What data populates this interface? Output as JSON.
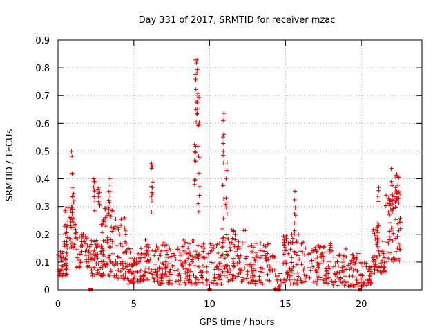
{
  "chart_data": {
    "type": "scatter",
    "title": "Day 331 of 2017, SRMTID for receiver mzac",
    "xlabel": "GPS time / hours",
    "ylabel": "SRMTID / TECUs",
    "xlim": [
      0,
      24
    ],
    "ylim": [
      0,
      0.9
    ],
    "xticks": [
      0,
      5,
      10,
      15,
      20
    ],
    "yticks": [
      0,
      0.1,
      0.2,
      0.3,
      0.4,
      0.5,
      0.6,
      0.7,
      0.8,
      0.9
    ],
    "grid": true,
    "marker": "plus",
    "color": "#e00000",
    "noise_seed": 331,
    "baseline_segments": [
      {
        "x_start": 0.0,
        "x_end": 0.6,
        "y_min": 0.05,
        "y_max": 0.14,
        "count": 40
      },
      {
        "x_start": 0.4,
        "x_end": 1.2,
        "y_min": 0.15,
        "y_max": 0.3,
        "count": 45
      },
      {
        "x_start": 1.2,
        "x_end": 2.2,
        "y_min": 0.08,
        "y_max": 0.2,
        "count": 55
      },
      {
        "x_start": 2.2,
        "x_end": 3.0,
        "y_min": 0.05,
        "y_max": 0.18,
        "count": 45
      },
      {
        "x_start": 2.8,
        "x_end": 3.6,
        "y_min": 0.05,
        "y_max": 0.3,
        "count": 55
      },
      {
        "x_start": 3.6,
        "x_end": 4.6,
        "y_min": 0.04,
        "y_max": 0.26,
        "count": 60
      },
      {
        "x_start": 4.6,
        "x_end": 5.2,
        "y_min": 0.02,
        "y_max": 0.15,
        "count": 40
      },
      {
        "x_start": 5.2,
        "x_end": 6.4,
        "y_min": 0.03,
        "y_max": 0.18,
        "count": 65
      },
      {
        "x_start": 6.4,
        "x_end": 7.8,
        "y_min": 0.02,
        "y_max": 0.17,
        "count": 75
      },
      {
        "x_start": 7.8,
        "x_end": 9.0,
        "y_min": 0.02,
        "y_max": 0.18,
        "count": 65
      },
      {
        "x_start": 9.0,
        "x_end": 10.8,
        "y_min": 0.02,
        "y_max": 0.17,
        "count": 85
      },
      {
        "x_start": 10.8,
        "x_end": 12.4,
        "y_min": 0.03,
        "y_max": 0.22,
        "count": 85
      },
      {
        "x_start": 12.4,
        "x_end": 14.3,
        "y_min": 0.02,
        "y_max": 0.17,
        "count": 85
      },
      {
        "x_start": 14.3,
        "x_end": 14.8,
        "y_min": 0.0,
        "y_max": 0.06,
        "count": 15
      },
      {
        "x_start": 14.8,
        "x_end": 16.2,
        "y_min": 0.02,
        "y_max": 0.2,
        "count": 75
      },
      {
        "x_start": 16.2,
        "x_end": 18.0,
        "y_min": 0.02,
        "y_max": 0.17,
        "count": 85
      },
      {
        "x_start": 18.0,
        "x_end": 19.9,
        "y_min": 0.01,
        "y_max": 0.15,
        "count": 85
      },
      {
        "x_start": 19.9,
        "x_end": 20.7,
        "y_min": 0.01,
        "y_max": 0.1,
        "count": 40
      },
      {
        "x_start": 20.7,
        "x_end": 21.6,
        "y_min": 0.06,
        "y_max": 0.22,
        "count": 55
      },
      {
        "x_start": 21.6,
        "x_end": 22.6,
        "y_min": 0.1,
        "y_max": 0.35,
        "count": 65
      }
    ],
    "spike_columns": [
      {
        "x": 0.9,
        "y_min": 0.2,
        "y_max": 0.52,
        "count": 12
      },
      {
        "x": 1.0,
        "y_min": 0.22,
        "y_max": 0.42,
        "count": 8
      },
      {
        "x": 2.4,
        "y_min": 0.28,
        "y_max": 0.4,
        "count": 10
      },
      {
        "x": 2.7,
        "y_min": 0.3,
        "y_max": 0.38,
        "count": 8
      },
      {
        "x": 3.4,
        "y_min": 0.25,
        "y_max": 0.41,
        "count": 10
      },
      {
        "x": 6.2,
        "y_min": 0.28,
        "y_max": 0.47,
        "count": 12
      },
      {
        "x": 9.05,
        "y_min": 0.35,
        "y_max": 0.83,
        "count": 14
      },
      {
        "x": 9.15,
        "y_min": 0.6,
        "y_max": 0.83,
        "count": 12
      },
      {
        "x": 9.25,
        "y_min": 0.45,
        "y_max": 0.71,
        "count": 8
      },
      {
        "x": 9.3,
        "y_min": 0.25,
        "y_max": 0.5,
        "count": 6
      },
      {
        "x": 10.9,
        "y_min": 0.25,
        "y_max": 0.65,
        "count": 12
      },
      {
        "x": 11.1,
        "y_min": 0.25,
        "y_max": 0.47,
        "count": 8
      },
      {
        "x": 15.6,
        "y_min": 0.2,
        "y_max": 0.36,
        "count": 8
      },
      {
        "x": 21.1,
        "y_min": 0.22,
        "y_max": 0.37,
        "count": 8
      },
      {
        "x": 22.0,
        "y_min": 0.25,
        "y_max": 0.44,
        "count": 10
      },
      {
        "x": 22.3,
        "y_min": 0.28,
        "y_max": 0.42,
        "count": 10
      },
      {
        "x": 22.45,
        "y_min": 0.3,
        "y_max": 0.41,
        "count": 8
      }
    ],
    "zero_markers": [
      2.15,
      10.0,
      14.4,
      14.55,
      19.9
    ]
  }
}
